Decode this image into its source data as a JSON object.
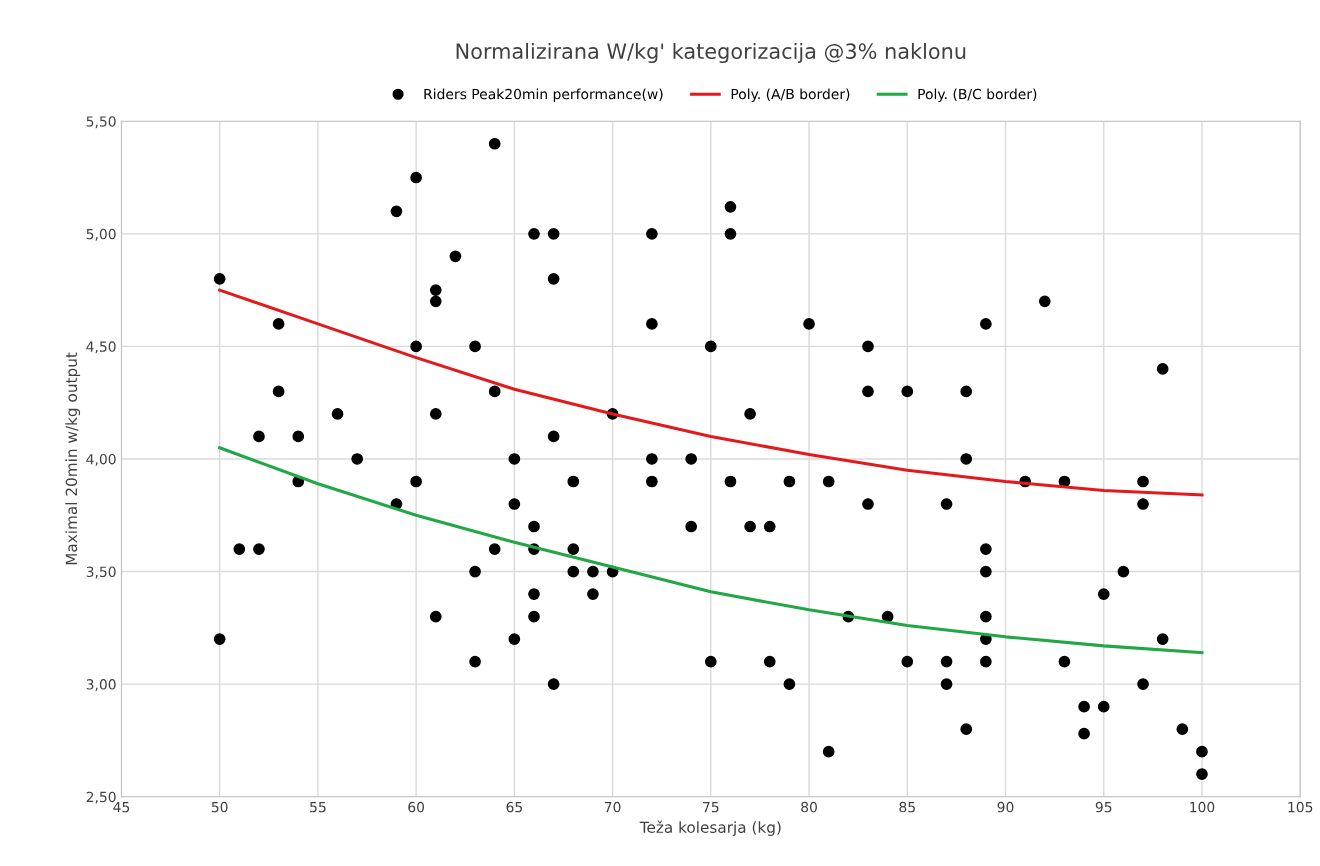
{
  "chart_data": {
    "type": "scatter",
    "title": "Normalizirana W/kg' kategorizacija @3% naklonu",
    "xlabel": "Teža kolesarja (kg)",
    "ylabel": "Maximal 20min w/kg output",
    "xlim": [
      45,
      105
    ],
    "xticks": [
      45,
      50,
      55,
      60,
      65,
      70,
      75,
      80,
      85,
      90,
      95,
      100,
      105
    ],
    "ylim": [
      2.5,
      5.5
    ],
    "yticks": [
      {
        "value": 2.5,
        "label": "2,50"
      },
      {
        "value": 3.0,
        "label": "3,00"
      },
      {
        "value": 3.5,
        "label": "3,50"
      },
      {
        "value": 4.0,
        "label": "4,00"
      },
      {
        "value": 4.5,
        "label": "4,50"
      },
      {
        "value": 5.0,
        "label": "5,00"
      },
      {
        "value": 5.5,
        "label": "5,50"
      }
    ],
    "grid": true,
    "legend": "top",
    "marker": "circle",
    "series": [
      {
        "name": "Riders Peak20min performance(w)",
        "color": "#000000",
        "x": [
          50,
          50,
          51,
          52,
          52,
          53,
          53,
          54,
          54,
          56,
          57,
          59,
          59,
          60,
          60,
          60,
          61,
          61,
          61,
          61,
          62,
          63,
          63,
          63,
          64,
          64,
          64,
          65,
          65,
          65,
          66,
          66,
          66,
          66,
          66,
          67,
          67,
          67,
          67,
          68,
          68,
          68,
          69,
          69,
          70,
          70,
          72,
          72,
          72,
          72,
          74,
          74,
          75,
          75,
          76,
          76,
          76,
          77,
          77,
          78,
          78,
          79,
          79,
          80,
          81,
          81,
          82,
          83,
          83,
          83,
          84,
          85,
          85,
          87,
          87,
          87,
          88,
          88,
          88,
          89,
          89,
          89,
          89,
          89,
          89,
          91,
          92,
          93,
          93,
          94,
          94,
          95,
          95,
          96,
          97,
          97,
          97,
          98,
          98,
          99,
          100,
          100
        ],
        "values": [
          4.8,
          3.2,
          3.6,
          4.1,
          3.6,
          4.6,
          4.3,
          4.1,
          3.9,
          4.2,
          4.0,
          5.1,
          3.8,
          5.25,
          4.5,
          3.9,
          4.75,
          4.7,
          4.2,
          3.3,
          4.9,
          4.5,
          3.5,
          3.1,
          5.4,
          4.3,
          3.6,
          4.0,
          3.8,
          3.2,
          5.0,
          3.7,
          3.6,
          3.4,
          3.3,
          5.0,
          4.8,
          4.1,
          3.0,
          3.9,
          3.6,
          3.5,
          3.5,
          3.4,
          4.2,
          3.5,
          5.0,
          4.6,
          4.0,
          3.9,
          4.0,
          3.7,
          4.5,
          3.1,
          5.12,
          5.0,
          3.9,
          4.2,
          3.7,
          3.7,
          3.1,
          3.9,
          3.0,
          4.6,
          3.9,
          2.7,
          3.3,
          4.5,
          4.3,
          3.8,
          3.3,
          4.3,
          3.1,
          3.8,
          3.1,
          3.0,
          4.3,
          4.0,
          2.8,
          4.6,
          3.6,
          3.5,
          3.3,
          3.2,
          3.1,
          3.9,
          4.7,
          3.9,
          3.1,
          2.9,
          2.78,
          3.4,
          2.9,
          3.5,
          3.9,
          3.8,
          3.0,
          4.4,
          3.2,
          2.8,
          2.7,
          2.6
        ]
      },
      {
        "name": "Poly. (A/B border)",
        "type": "line",
        "color": "#e31a1c",
        "marker": "none",
        "x": [
          50,
          55,
          60,
          65,
          70,
          75,
          80,
          85,
          90,
          95,
          100
        ],
        "values": [
          4.75,
          4.6,
          4.45,
          4.31,
          4.2,
          4.1,
          4.02,
          3.95,
          3.9,
          3.86,
          3.84
        ]
      },
      {
        "name": "Poly. (B/C border)",
        "type": "line",
        "color": "#22a745",
        "marker": "none",
        "x": [
          50,
          55,
          60,
          65,
          70,
          75,
          80,
          85,
          90,
          95,
          100
        ],
        "values": [
          4.05,
          3.89,
          3.75,
          3.63,
          3.52,
          3.41,
          3.33,
          3.26,
          3.21,
          3.17,
          3.14
        ]
      }
    ]
  }
}
